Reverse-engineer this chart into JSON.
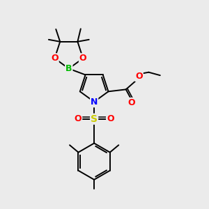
{
  "bg_color": "#ebebeb",
  "atom_colors": {
    "C": "#000000",
    "N": "#0000ff",
    "O": "#ff0000",
    "B": "#00bb00",
    "S": "#cccc00"
  },
  "bond_color": "#000000",
  "line_width": 1.4,
  "scale": 1.0
}
